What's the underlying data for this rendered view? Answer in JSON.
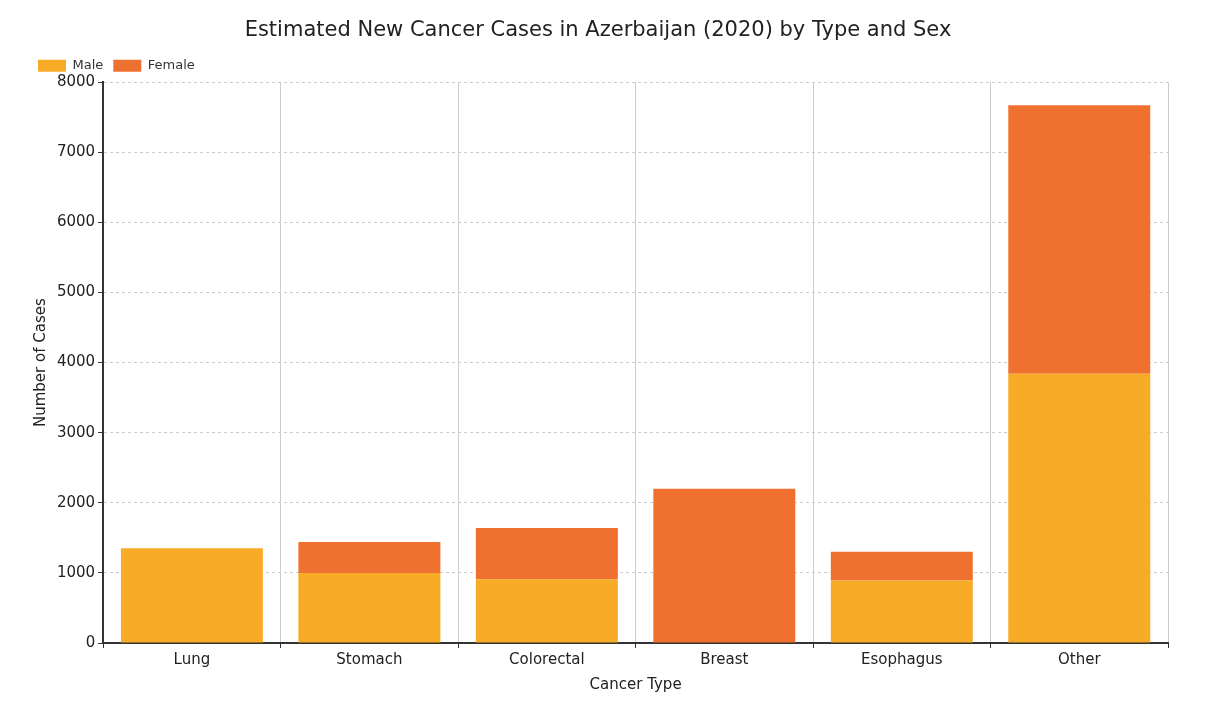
{
  "chart_data": {
    "type": "bar",
    "title": "Estimated New Cancer Cases in Azerbaijan (2020) by Type and Sex",
    "xlabel": "Cancer Type",
    "ylabel": "Number of Cases",
    "categories": [
      "Lung",
      "Stomach",
      "Colorectal",
      "Breast",
      "Esophagus",
      "Other"
    ],
    "stacked": true,
    "series": [
      {
        "name": "Male",
        "color": "#f8ab27",
        "values": [
          1350,
          1000,
          910,
          0,
          890,
          3840
        ]
      },
      {
        "name": "Female",
        "color": "#f07030",
        "values": [
          0,
          440,
          730,
          2200,
          410,
          3830
        ]
      }
    ],
    "ylim": [
      0,
      8000
    ],
    "yticks": [
      0,
      1000,
      2000,
      3000,
      4000,
      5000,
      6000,
      7000,
      8000
    ],
    "grid": true,
    "legend": "top left"
  }
}
